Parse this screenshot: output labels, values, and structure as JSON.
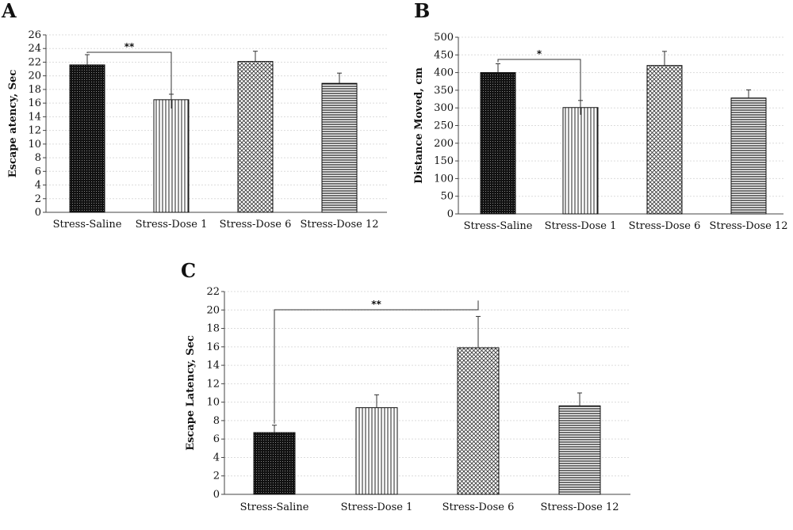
{
  "chart_data": [
    {
      "panel": "A",
      "type": "bar",
      "categories": [
        "Stress-Saline",
        "Stress-Dose 1",
        "Stress-Dose 6",
        "Stress-Dose 12"
      ],
      "values": [
        21.6,
        16.5,
        22.1,
        18.9
      ],
      "errors": [
        1.5,
        0.8,
        1.5,
        1.5
      ],
      "ylabel": "Escape atency, Sec",
      "ylim": [
        0,
        26
      ],
      "yticks": [
        0,
        2,
        4,
        6,
        8,
        10,
        12,
        14,
        16,
        18,
        20,
        22,
        24,
        26
      ],
      "grid": true,
      "significance": {
        "from": 0,
        "to": 1,
        "label": "**"
      }
    },
    {
      "panel": "B",
      "type": "bar",
      "categories": [
        "Stress-Saline",
        "Stress-Dose 1",
        "Stress-Dose 6",
        "Stress-Dose 12"
      ],
      "values": [
        400,
        301,
        420,
        328
      ],
      "errors": [
        25,
        20,
        40,
        23
      ],
      "ylabel": "Distance Moved, cm",
      "ylim": [
        0,
        500
      ],
      "yticks": [
        0,
        50,
        100,
        150,
        200,
        250,
        300,
        350,
        400,
        450,
        500
      ],
      "grid": true,
      "significance": {
        "from": 0,
        "to": 1,
        "label": "*"
      }
    },
    {
      "panel": "C",
      "type": "bar",
      "categories": [
        "Stress-Saline",
        "Stress-Dose 1",
        "Stress-Dose 6",
        "Stress-Dose 12"
      ],
      "values": [
        6.7,
        9.4,
        15.9,
        9.6
      ],
      "errors": [
        0.8,
        1.4,
        3.4,
        1.4
      ],
      "ylabel": "Escape Latency, Sec",
      "ylim": [
        0,
        22
      ],
      "yticks": [
        0,
        2,
        4,
        6,
        8,
        10,
        12,
        14,
        16,
        18,
        20,
        22
      ],
      "grid": true,
      "significance": {
        "from": 0,
        "to": 2,
        "label": "**"
      }
    }
  ]
}
